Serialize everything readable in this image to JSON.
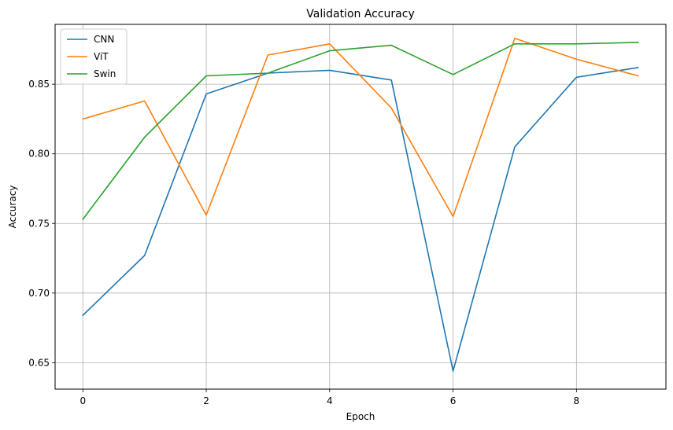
{
  "chart_data": {
    "type": "line",
    "title": "Validation Accuracy",
    "xlabel": "Epoch",
    "ylabel": "Accuracy",
    "x": [
      0,
      1,
      2,
      3,
      4,
      5,
      6,
      7,
      8,
      9
    ],
    "xlim": [
      -0.45,
      9.45
    ],
    "ylim": [
      0.631,
      0.893
    ],
    "xticks": [
      0,
      2,
      4,
      6,
      8
    ],
    "xtick_labels": [
      "0",
      "2",
      "4",
      "6",
      "8"
    ],
    "yticks": [
      0.65,
      0.7,
      0.75,
      0.8,
      0.85
    ],
    "ytick_labels": [
      "0.65",
      "0.70",
      "0.75",
      "0.80",
      "0.85"
    ],
    "grid": true,
    "legend_position": "upper-left",
    "series": [
      {
        "name": "CNN",
        "color": "#1f77b4",
        "values": [
          0.684,
          0.727,
          0.843,
          0.858,
          0.86,
          0.853,
          0.644,
          0.805,
          0.855,
          0.862
        ]
      },
      {
        "name": "ViT",
        "color": "#ff7f0e",
        "values": [
          0.825,
          0.838,
          0.756,
          0.871,
          0.879,
          0.833,
          0.755,
          0.883,
          0.868,
          0.856
        ]
      },
      {
        "name": "Swin",
        "color": "#2ca02c",
        "values": [
          0.753,
          0.812,
          0.856,
          0.858,
          0.874,
          0.878,
          0.857,
          0.879,
          0.879,
          0.88
        ]
      }
    ]
  }
}
